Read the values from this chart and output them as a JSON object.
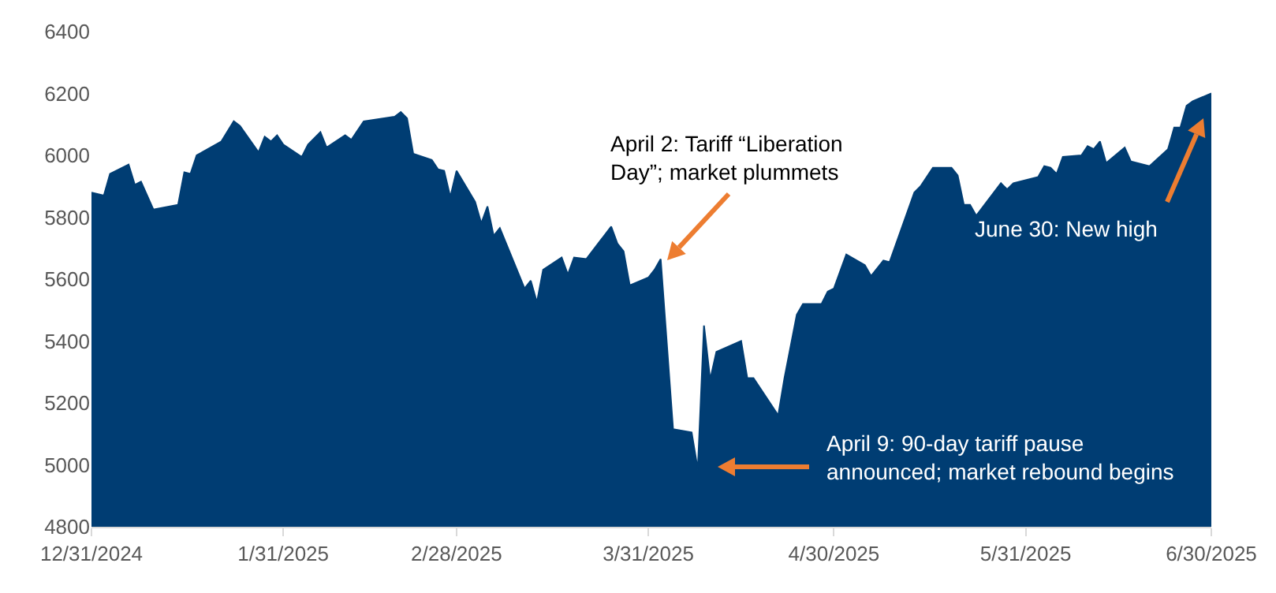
{
  "chart_data": {
    "type": "area",
    "color": "#003d73",
    "x": [
      "2024-12-31",
      "2025-01-02",
      "2025-01-03",
      "2025-01-06",
      "2025-01-07",
      "2025-01-08",
      "2025-01-10",
      "2025-01-14",
      "2025-01-15",
      "2025-01-16",
      "2025-01-17",
      "2025-01-21",
      "2025-01-23",
      "2025-01-24",
      "2025-01-27",
      "2025-01-28",
      "2025-01-29",
      "2025-01-30",
      "2025-01-31",
      "2025-02-03",
      "2025-02-04",
      "2025-02-06",
      "2025-02-07",
      "2025-02-10",
      "2025-02-11",
      "2025-02-13",
      "2025-02-18",
      "2025-02-19",
      "2025-02-20",
      "2025-02-21",
      "2025-02-24",
      "2025-02-25",
      "2025-02-26",
      "2025-02-27",
      "2025-02-28",
      "2025-03-03",
      "2025-03-04",
      "2025-03-05",
      "2025-03-06",
      "2025-03-07",
      "2025-03-11",
      "2025-03-12",
      "2025-03-13",
      "2025-03-14",
      "2025-03-17",
      "2025-03-18",
      "2025-03-19",
      "2025-03-21",
      "2025-03-25",
      "2025-03-26",
      "2025-03-27",
      "2025-03-28",
      "2025-03-31",
      "2025-04-01",
      "2025-04-02",
      "2025-04-04",
      "2025-04-07",
      "2025-04-08",
      "2025-04-09",
      "2025-04-10",
      "2025-04-11",
      "2025-04-15",
      "2025-04-16",
      "2025-04-17",
      "2025-04-21",
      "2025-04-22",
      "2025-04-24",
      "2025-04-25",
      "2025-04-28",
      "2025-04-29",
      "2025-04-30",
      "2025-05-02",
      "2025-05-05",
      "2025-05-06",
      "2025-05-08",
      "2025-05-09",
      "2025-05-13",
      "2025-05-14",
      "2025-05-16",
      "2025-05-19",
      "2025-05-20",
      "2025-05-21",
      "2025-05-22",
      "2025-05-23",
      "2025-05-27",
      "2025-05-28",
      "2025-05-29",
      "2025-06-02",
      "2025-06-03",
      "2025-06-04",
      "2025-06-05",
      "2025-06-06",
      "2025-06-09",
      "2025-06-10",
      "2025-06-11",
      "2025-06-12",
      "2025-06-13",
      "2025-06-16",
      "2025-06-17",
      "2025-06-20",
      "2025-06-23",
      "2025-06-24",
      "2025-06-25",
      "2025-06-26",
      "2025-06-27",
      "2025-06-30"
    ],
    "values": [
      5880,
      5870,
      5940,
      5970,
      5905,
      5915,
      5825,
      5840,
      5945,
      5940,
      6000,
      6045,
      6110,
      6095,
      6010,
      6060,
      6045,
      6065,
      6035,
      5995,
      6035,
      6075,
      6025,
      6065,
      6050,
      6110,
      6125,
      6140,
      6120,
      6005,
      5985,
      5955,
      5950,
      5865,
      5950,
      5850,
      5780,
      5835,
      5740,
      5765,
      5570,
      5595,
      5525,
      5630,
      5670,
      5615,
      5670,
      5665,
      5770,
      5715,
      5690,
      5580,
      5605,
      5630,
      5665,
      5115,
      5105,
      4985,
      5450,
      5275,
      5365,
      5400,
      5280,
      5280,
      5160,
      5280,
      5485,
      5520,
      5520,
      5560,
      5570,
      5680,
      5645,
      5610,
      5660,
      5655,
      5880,
      5900,
      5960,
      5960,
      5935,
      5840,
      5840,
      5805,
      5910,
      5890,
      5910,
      5930,
      5965,
      5960,
      5940,
      5995,
      6000,
      6030,
      6020,
      6045,
      5975,
      6025,
      5980,
      5965,
      6020,
      6090,
      6090,
      6160,
      6175,
      6200
    ],
    "xlim": [
      "2024-12-31",
      "2025-06-30"
    ],
    "xticks": [
      {
        "value": "2024-12-31",
        "label": "12/31/2024"
      },
      {
        "value": "2025-01-31",
        "label": "1/31/2025"
      },
      {
        "value": "2025-02-28",
        "label": "2/28/2025"
      },
      {
        "value": "2025-03-31",
        "label": "3/31/2025"
      },
      {
        "value": "2025-04-30",
        "label": "4/30/2025"
      },
      {
        "value": "2025-05-31",
        "label": "5/31/2025"
      },
      {
        "value": "2025-06-30",
        "label": "6/30/2025"
      }
    ],
    "ylim": [
      4800,
      6400
    ],
    "yticks": [
      4800,
      5000,
      5200,
      5400,
      5600,
      5800,
      6000,
      6200,
      6400
    ],
    "grid": false,
    "annotations": [
      "April 2: Tariff “Liberation Day”; market plummets",
      "April 9: 90-day tariff pause announced; market rebound begins",
      "June 30: New high"
    ]
  }
}
